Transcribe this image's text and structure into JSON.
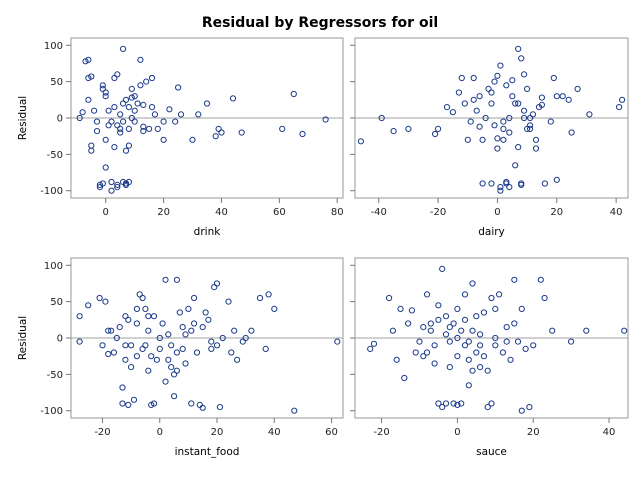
{
  "title": "Residual by Regressors for oil",
  "colors": {
    "marker": "#1a3a8a",
    "refline": "#a0a0a0",
    "frame": "#9a9a9a",
    "background": "#ffffff"
  },
  "chart_data": [
    {
      "type": "scatter",
      "name": "drink",
      "xlabel": "drink",
      "ylabel": "Residual",
      "xlim": [
        -12,
        82
      ],
      "ylim": [
        -110,
        110
      ],
      "xticks": [
        0,
        20,
        40,
        60,
        80
      ],
      "yticks": [
        -100,
        -50,
        0,
        50,
        100
      ],
      "refline_y": 0,
      "points": [
        [
          -9,
          0
        ],
        [
          -8,
          8
        ],
        [
          -7,
          78
        ],
        [
          -6,
          80
        ],
        [
          -6,
          55
        ],
        [
          -5,
          57
        ],
        [
          -6,
          25
        ],
        [
          -5,
          -45
        ],
        [
          -5,
          -38
        ],
        [
          -4,
          10
        ],
        [
          -3,
          -18
        ],
        [
          -3,
          -5
        ],
        [
          -2,
          -92
        ],
        [
          -2,
          -95
        ],
        [
          -1,
          45
        ],
        [
          -1,
          40
        ],
        [
          0,
          35
        ],
        [
          0,
          30
        ],
        [
          -1,
          -90
        ],
        [
          0,
          -68
        ],
        [
          0,
          -30
        ],
        [
          1,
          -10
        ],
        [
          1,
          10
        ],
        [
          2,
          -100
        ],
        [
          2,
          -88
        ],
        [
          2,
          -5
        ],
        [
          3,
          55
        ],
        [
          3,
          15
        ],
        [
          3,
          -40
        ],
        [
          4,
          -92
        ],
        [
          4,
          -95
        ],
        [
          4,
          60
        ],
        [
          4,
          -10
        ],
        [
          5,
          5
        ],
        [
          5,
          -15
        ],
        [
          5,
          -20
        ],
        [
          6,
          95
        ],
        [
          6,
          20
        ],
        [
          6,
          -5
        ],
        [
          6,
          -88
        ],
        [
          7,
          -90
        ],
        [
          7,
          -92
        ],
        [
          7,
          25
        ],
        [
          7,
          -45
        ],
        [
          8,
          15
        ],
        [
          8,
          -15
        ],
        [
          8,
          -38
        ],
        [
          8,
          -88
        ],
        [
          9,
          40
        ],
        [
          9,
          28
        ],
        [
          9,
          0
        ],
        [
          10,
          30
        ],
        [
          10,
          10
        ],
        [
          10,
          -5
        ],
        [
          11,
          20
        ],
        [
          12,
          80
        ],
        [
          12,
          45
        ],
        [
          13,
          18
        ],
        [
          13,
          -12
        ],
        [
          13,
          -18
        ],
        [
          14,
          50
        ],
        [
          15,
          -15
        ],
        [
          16,
          55
        ],
        [
          16,
          15
        ],
        [
          17,
          5
        ],
        [
          18,
          -15
        ],
        [
          20,
          -30
        ],
        [
          20,
          -5
        ],
        [
          22,
          12
        ],
        [
          24,
          -5
        ],
        [
          25,
          42
        ],
        [
          26,
          5
        ],
        [
          30,
          -30
        ],
        [
          32,
          5
        ],
        [
          35,
          20
        ],
        [
          38,
          -25
        ],
        [
          39,
          -15
        ],
        [
          40,
          -20
        ],
        [
          44,
          27
        ],
        [
          47,
          -20
        ],
        [
          61,
          -15
        ],
        [
          65,
          33
        ],
        [
          68,
          -22
        ],
        [
          76,
          -2
        ]
      ]
    },
    {
      "type": "scatter",
      "name": "dairy",
      "xlabel": "dairy",
      "ylabel": "",
      "xlim": [
        -48,
        44
      ],
      "ylim": [
        -110,
        110
      ],
      "xticks": [
        -40,
        -20,
        0,
        20,
        40
      ],
      "yticks": [
        -100,
        -50,
        0,
        50,
        100
      ],
      "refline_y": 0,
      "points": [
        [
          -46,
          -32
        ],
        [
          -39,
          0
        ],
        [
          -35,
          -18
        ],
        [
          -30,
          -15
        ],
        [
          -21,
          -22
        ],
        [
          -20,
          -15
        ],
        [
          -17,
          15
        ],
        [
          -15,
          8
        ],
        [
          -13,
          35
        ],
        [
          -12,
          55
        ],
        [
          -11,
          20
        ],
        [
          -10,
          -30
        ],
        [
          -9,
          -5
        ],
        [
          -8,
          25
        ],
        [
          -7,
          10
        ],
        [
          -6,
          -12
        ],
        [
          -5,
          -30
        ],
        [
          -4,
          0
        ],
        [
          -3,
          40
        ],
        [
          -2,
          35
        ],
        [
          -2,
          20
        ],
        [
          -1,
          -10
        ],
        [
          0,
          -28
        ],
        [
          0,
          -42
        ],
        [
          -1,
          50
        ],
        [
          0,
          58
        ],
        [
          1,
          -95
        ],
        [
          1,
          -100
        ],
        [
          1,
          72
        ],
        [
          2,
          -5
        ],
        [
          2,
          -15
        ],
        [
          2,
          -30
        ],
        [
          3,
          -90
        ],
        [
          3,
          -88
        ],
        [
          3,
          45
        ],
        [
          4,
          0
        ],
        [
          4,
          -20
        ],
        [
          5,
          52
        ],
        [
          5,
          30
        ],
        [
          6,
          20
        ],
        [
          6,
          -65
        ],
        [
          7,
          -40
        ],
        [
          7,
          95
        ],
        [
          8,
          82
        ],
        [
          8,
          -90
        ],
        [
          9,
          60
        ],
        [
          9,
          10
        ],
        [
          10,
          -15
        ],
        [
          11,
          0
        ],
        [
          11,
          -10
        ],
        [
          11,
          -15
        ],
        [
          12,
          5
        ],
        [
          13,
          -30
        ],
        [
          13,
          -42
        ],
        [
          14,
          15
        ],
        [
          15,
          28
        ],
        [
          15,
          18
        ],
        [
          16,
          -90
        ],
        [
          18,
          -5
        ],
        [
          19,
          55
        ],
        [
          20,
          -85
        ],
        [
          20,
          30
        ],
        [
          22,
          30
        ],
        [
          24,
          25
        ],
        [
          25,
          -20
        ],
        [
          27,
          40
        ],
        [
          31,
          5
        ],
        [
          41,
          15
        ],
        [
          42,
          25
        ],
        [
          -5,
          -90
        ],
        [
          -2,
          -90
        ],
        [
          4,
          -95
        ],
        [
          8,
          -92
        ],
        [
          10,
          40
        ],
        [
          -6,
          30
        ],
        [
          -8,
          55
        ],
        [
          7,
          20
        ],
        [
          9,
          0
        ]
      ]
    },
    {
      "type": "scatter",
      "name": "instant_food",
      "xlabel": "instant_food",
      "ylabel": "Residual",
      "xlim": [
        -31,
        64
      ],
      "ylim": [
        -110,
        110
      ],
      "xticks": [
        -20,
        0,
        20,
        40,
        60
      ],
      "yticks": [
        -100,
        -50,
        0,
        50,
        100
      ],
      "refline_y": 0,
      "points": [
        [
          -28,
          30
        ],
        [
          -28,
          -5
        ],
        [
          -25,
          45
        ],
        [
          -21,
          55
        ],
        [
          -19,
          50
        ],
        [
          -18,
          -22
        ],
        [
          -17,
          10
        ],
        [
          -16,
          -20
        ],
        [
          -15,
          0
        ],
        [
          -14,
          15
        ],
        [
          -13,
          -90
        ],
        [
          -13,
          -68
        ],
        [
          -12,
          30
        ],
        [
          -12,
          -30
        ],
        [
          -12,
          -10
        ],
        [
          -11,
          25
        ],
        [
          -11,
          -92
        ],
        [
          -10,
          -40
        ],
        [
          -10,
          -10
        ],
        [
          -9,
          -85
        ],
        [
          -8,
          -25
        ],
        [
          -8,
          40
        ],
        [
          -8,
          20
        ],
        [
          -7,
          60
        ],
        [
          -6,
          55
        ],
        [
          -6,
          -15
        ],
        [
          -5,
          40
        ],
        [
          -4,
          30
        ],
        [
          -4,
          10
        ],
        [
          -4,
          -45
        ],
        [
          -3,
          -92
        ],
        [
          -3,
          -25
        ],
        [
          -2,
          -90
        ],
        [
          -2,
          30
        ],
        [
          -1,
          -30
        ],
        [
          0,
          -15
        ],
        [
          0,
          0
        ],
        [
          1,
          20
        ],
        [
          2,
          80
        ],
        [
          2,
          -60
        ],
        [
          3,
          -30
        ],
        [
          3,
          5
        ],
        [
          4,
          -40
        ],
        [
          5,
          -80
        ],
        [
          5,
          -50
        ],
        [
          6,
          80
        ],
        [
          6,
          -20
        ],
        [
          6,
          -45
        ],
        [
          7,
          35
        ],
        [
          8,
          15
        ],
        [
          8,
          -15
        ],
        [
          9,
          5
        ],
        [
          10,
          40
        ],
        [
          11,
          10
        ],
        [
          11,
          -90
        ],
        [
          12,
          20
        ],
        [
          12,
          55
        ],
        [
          13,
          -20
        ],
        [
          14,
          -92
        ],
        [
          15,
          -96
        ],
        [
          15,
          15
        ],
        [
          16,
          35
        ],
        [
          17,
          25
        ],
        [
          18,
          -5
        ],
        [
          18,
          -15
        ],
        [
          19,
          70
        ],
        [
          20,
          75
        ],
        [
          20,
          -10
        ],
        [
          21,
          -95
        ],
        [
          22,
          0
        ],
        [
          24,
          50
        ],
        [
          25,
          -20
        ],
        [
          26,
          10
        ],
        [
          27,
          -30
        ],
        [
          29,
          -5
        ],
        [
          30,
          0
        ],
        [
          32,
          10
        ],
        [
          35,
          55
        ],
        [
          37,
          -15
        ],
        [
          38,
          60
        ],
        [
          40,
          40
        ],
        [
          47,
          -100
        ],
        [
          62,
          -5
        ],
        [
          -20,
          -10
        ],
        [
          -18,
          10
        ],
        [
          -5,
          -10
        ],
        [
          4,
          -10
        ],
        [
          9,
          -35
        ]
      ]
    },
    {
      "type": "scatter",
      "name": "sauce",
      "xlabel": "sauce",
      "ylabel": "",
      "xlim": [
        -27,
        45
      ],
      "ylim": [
        -110,
        110
      ],
      "xticks": [
        -20,
        0,
        20,
        40
      ],
      "yticks": [
        -100,
        -50,
        0,
        50,
        100
      ],
      "refline_y": 0,
      "points": [
        [
          -23,
          -15
        ],
        [
          -22,
          -8
        ],
        [
          -18,
          55
        ],
        [
          -17,
          10
        ],
        [
          -16,
          -30
        ],
        [
          -15,
          40
        ],
        [
          -14,
          -55
        ],
        [
          -13,
          20
        ],
        [
          -12,
          38
        ],
        [
          -11,
          -20
        ],
        [
          -10,
          -5
        ],
        [
          -9,
          15
        ],
        [
          -9,
          -25
        ],
        [
          -8,
          60
        ],
        [
          -7,
          20
        ],
        [
          -7,
          10
        ],
        [
          -6,
          -10
        ],
        [
          -6,
          -35
        ],
        [
          -5,
          45
        ],
        [
          -5,
          25
        ],
        [
          -5,
          -90
        ],
        [
          -4,
          -95
        ],
        [
          -4,
          95
        ],
        [
          -3,
          -90
        ],
        [
          -3,
          30
        ],
        [
          -3,
          5
        ],
        [
          -2,
          -40
        ],
        [
          -2,
          -5
        ],
        [
          -1,
          20
        ],
        [
          -1,
          -90
        ],
        [
          0,
          -92
        ],
        [
          0,
          40
        ],
        [
          0,
          0
        ],
        [
          0,
          -25
        ],
        [
          1,
          -90
        ],
        [
          1,
          10
        ],
        [
          2,
          60
        ],
        [
          2,
          25
        ],
        [
          2,
          -10
        ],
        [
          3,
          -30
        ],
        [
          3,
          -5
        ],
        [
          4,
          75
        ],
        [
          4,
          10
        ],
        [
          4,
          -45
        ],
        [
          5,
          -20
        ],
        [
          5,
          30
        ],
        [
          6,
          -40
        ],
        [
          6,
          -10
        ],
        [
          7,
          35
        ],
        [
          7,
          -25
        ],
        [
          8,
          -95
        ],
        [
          8,
          -45
        ],
        [
          9,
          -90
        ],
        [
          9,
          55
        ],
        [
          10,
          40
        ],
        [
          10,
          0
        ],
        [
          10,
          -10
        ],
        [
          11,
          60
        ],
        [
          12,
          -20
        ],
        [
          13,
          15
        ],
        [
          13,
          -5
        ],
        [
          14,
          -30
        ],
        [
          15,
          80
        ],
        [
          15,
          20
        ],
        [
          16,
          -5
        ],
        [
          17,
          -100
        ],
        [
          17,
          40
        ],
        [
          18,
          -15
        ],
        [
          19,
          -95
        ],
        [
          20,
          -10
        ],
        [
          22,
          80
        ],
        [
          23,
          55
        ],
        [
          25,
          10
        ],
        [
          30,
          -5
        ],
        [
          34,
          10
        ],
        [
          44,
          10
        ],
        [
          -8,
          -20
        ],
        [
          -2,
          15
        ],
        [
          3,
          -65
        ],
        [
          6,
          5
        ]
      ]
    }
  ]
}
